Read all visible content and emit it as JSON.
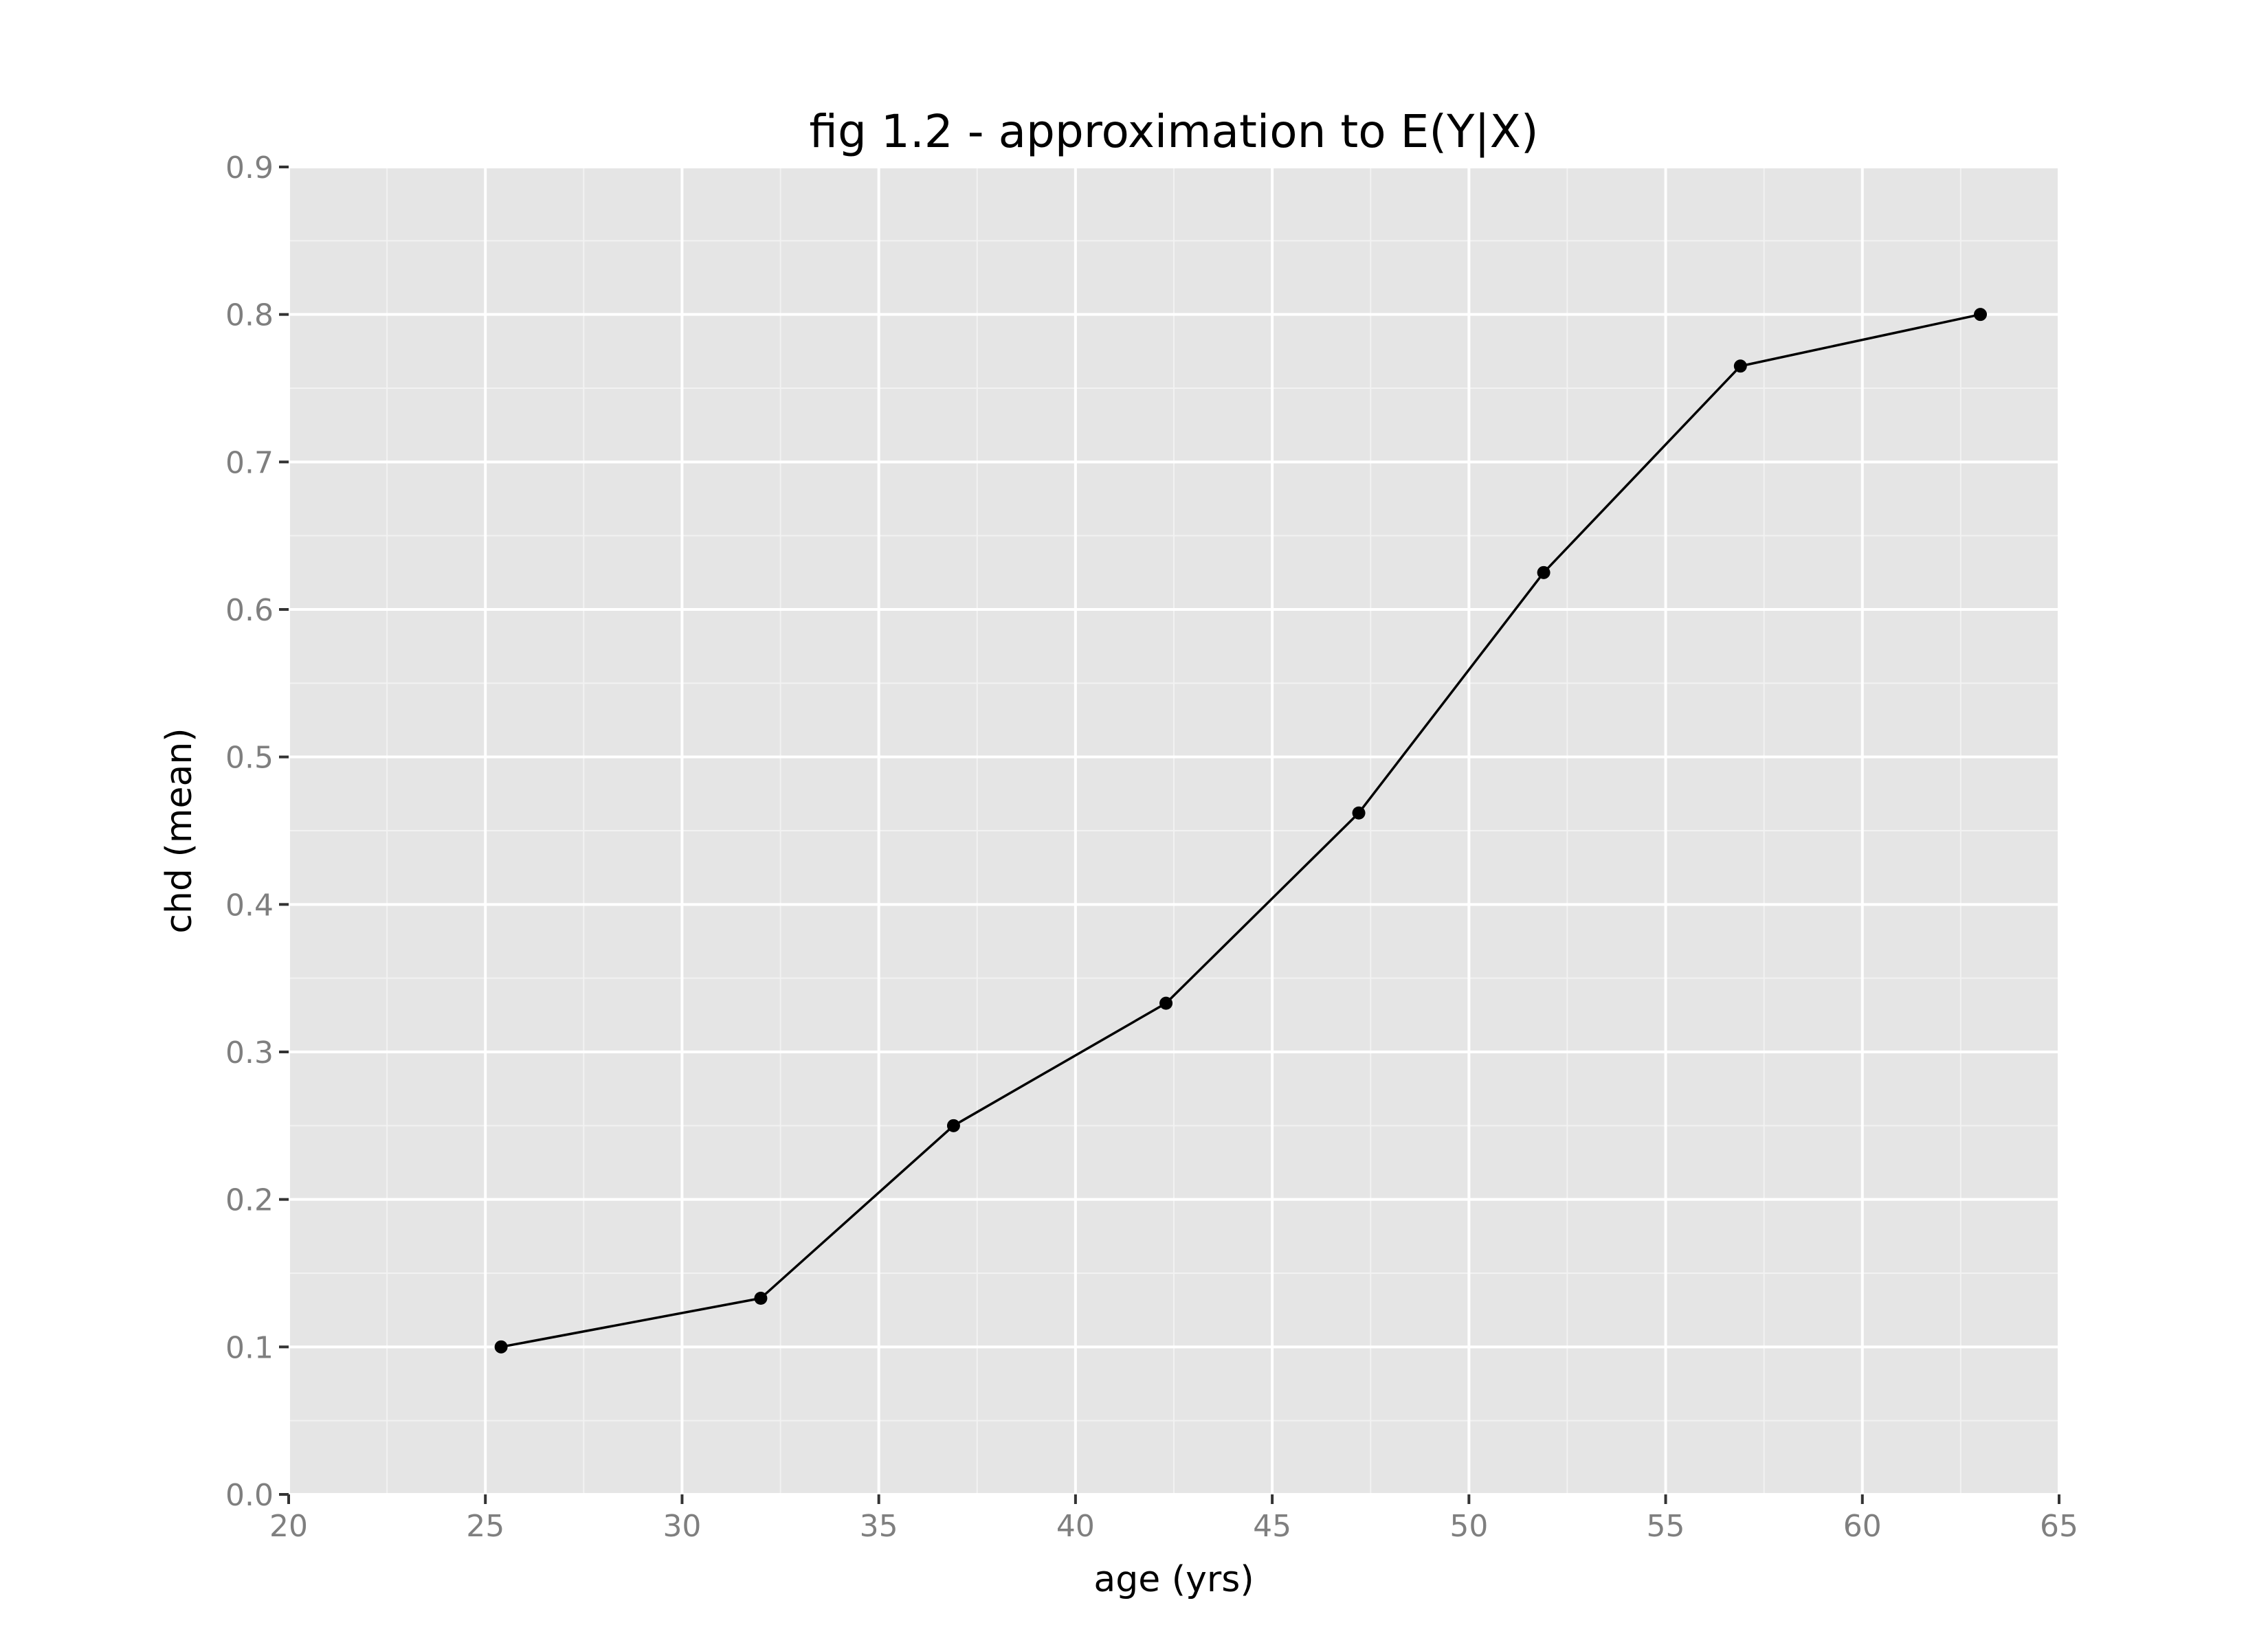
{
  "chart_data": {
    "type": "line",
    "title": "fig 1.2 - approximation to E(Y|X)",
    "xlabel": "age (yrs)",
    "ylabel": "chd (mean)",
    "xlim": [
      20,
      65
    ],
    "ylim": [
      0.0,
      0.9
    ],
    "xticks": [
      "20",
      "25",
      "30",
      "35",
      "40",
      "45",
      "50",
      "55",
      "60",
      "65"
    ],
    "yticks": [
      "0.0",
      "0.1",
      "0.2",
      "0.3",
      "0.4",
      "0.5",
      "0.6",
      "0.7",
      "0.8",
      "0.9"
    ],
    "grid": true,
    "series": [
      {
        "x": [
          25.4,
          32.0,
          36.9,
          42.3,
          47.2,
          51.9,
          56.9,
          63.0
        ],
        "y": [
          0.1,
          0.133,
          0.25,
          0.333,
          0.462,
          0.625,
          0.765,
          0.8
        ]
      }
    ],
    "colors": {
      "panel": "#e5e5e5",
      "grid_major": "#ffffff",
      "grid_minor": "#f2f2f2",
      "line": "#000000",
      "tick_text": "#7f7f7f"
    }
  }
}
